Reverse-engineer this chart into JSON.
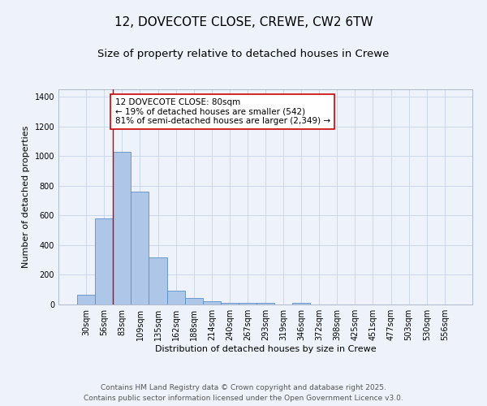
{
  "title_line1": "12, DOVECOTE CLOSE, CREWE, CW2 6TW",
  "title_line2": "Size of property relative to detached houses in Crewe",
  "xlabel": "Distribution of detached houses by size in Crewe",
  "ylabel": "Number of detached properties",
  "bar_labels": [
    "30sqm",
    "56sqm",
    "83sqm",
    "109sqm",
    "135sqm",
    "162sqm",
    "188sqm",
    "214sqm",
    "240sqm",
    "267sqm",
    "293sqm",
    "319sqm",
    "346sqm",
    "372sqm",
    "398sqm",
    "425sqm",
    "451sqm",
    "477sqm",
    "503sqm",
    "530sqm",
    "556sqm"
  ],
  "bar_values": [
    65,
    580,
    1030,
    760,
    315,
    95,
    45,
    22,
    12,
    10,
    10,
    0,
    10,
    0,
    0,
    0,
    0,
    0,
    0,
    0,
    0
  ],
  "bar_color": "#aec6e8",
  "bar_edge_color": "#5b8fc9",
  "bar_width": 1.0,
  "vline_x_idx": 2,
  "vline_color": "#cc0000",
  "annotation_text": "12 DOVECOTE CLOSE: 80sqm\n← 19% of detached houses are smaller (542)\n81% of semi-detached houses are larger (2,349) →",
  "annotation_box_facecolor": "#ffffff",
  "annotation_box_edgecolor": "#cc0000",
  "ylim": [
    0,
    1450
  ],
  "yticks": [
    0,
    200,
    400,
    600,
    800,
    1000,
    1200,
    1400
  ],
  "background_color": "#eef2fb",
  "grid_color": "#c8d4e8",
  "footer_text": "Contains HM Land Registry data © Crown copyright and database right 2025.\nContains public sector information licensed under the Open Government Licence v3.0.",
  "title_fontsize": 11,
  "subtitle_fontsize": 9.5,
  "axis_label_fontsize": 8,
  "tick_fontsize": 7,
  "annotation_fontsize": 7.5,
  "footer_fontsize": 6.5
}
